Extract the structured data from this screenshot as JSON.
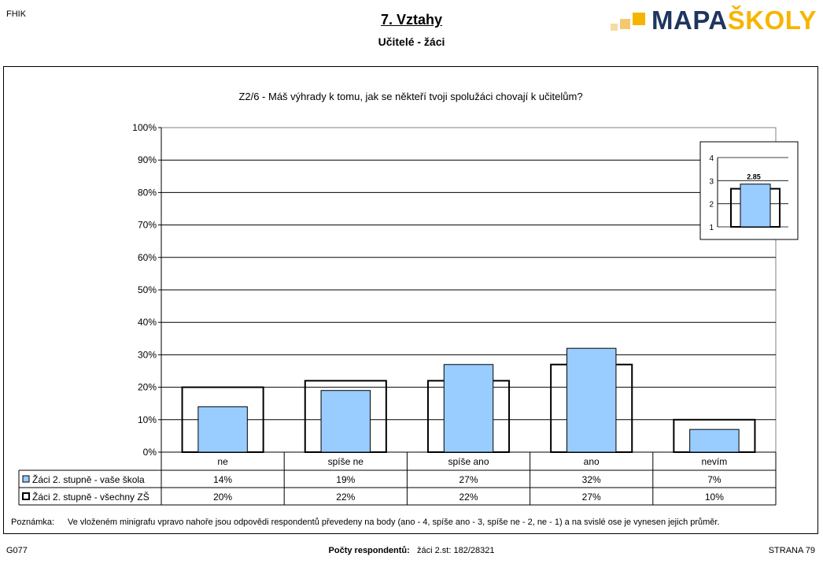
{
  "header": {
    "code": "FHIK",
    "title": "7. Vztahy",
    "subtitle": "Učitelé - žáci",
    "logo_part1": "MAPA",
    "logo_part2": "ŠKOLY"
  },
  "chart_data": {
    "type": "bar",
    "title": "Z2/6 - Máš výhrady k tomu, jak se někteří tvoji spolužáci chovají k učitelům?",
    "categories": [
      "ne",
      "spíše ne",
      "spíše ano",
      "ano",
      "nevím"
    ],
    "y_ticks": [
      "0%",
      "10%",
      "20%",
      "30%",
      "40%",
      "50%",
      "60%",
      "70%",
      "80%",
      "90%",
      "100%"
    ],
    "ylim": [
      0,
      100
    ],
    "grid": true,
    "series": [
      {
        "name": "Žáci 2. stupně - vaše škola",
        "values": [
          14,
          19,
          27,
          32,
          7
        ],
        "labels": [
          "14%",
          "19%",
          "27%",
          "32%",
          "7%"
        ],
        "color": "#99ccff"
      },
      {
        "name": "Žáci 2. stupně - všechny ZŠ",
        "values": [
          20,
          22,
          22,
          27,
          10
        ],
        "labels": [
          "20%",
          "22%",
          "22%",
          "27%",
          "10%"
        ],
        "color": "#ffffff"
      }
    ],
    "legend": "data-table",
    "inset": {
      "type": "bar",
      "ylim": [
        1,
        4
      ],
      "y_ticks": [
        "1",
        "2",
        "3",
        "4"
      ],
      "school_value": 2.85,
      "school_label": "2.85",
      "all_value": 2.65
    }
  },
  "note": {
    "label": "Poznámka:",
    "text": "Ve vloženém minigrafu vpravo nahoře jsou odpovědi respondentů převedeny na body (ano - 4, spíše ano - 3, spíše ne - 2, ne - 1) a na svislé ose je vynesen jejich průměr."
  },
  "footer": {
    "left": "G077",
    "center_label": "Počty respondentů:",
    "center_value": "žáci 2.st: 182/28321",
    "right": "STRANA 79"
  }
}
